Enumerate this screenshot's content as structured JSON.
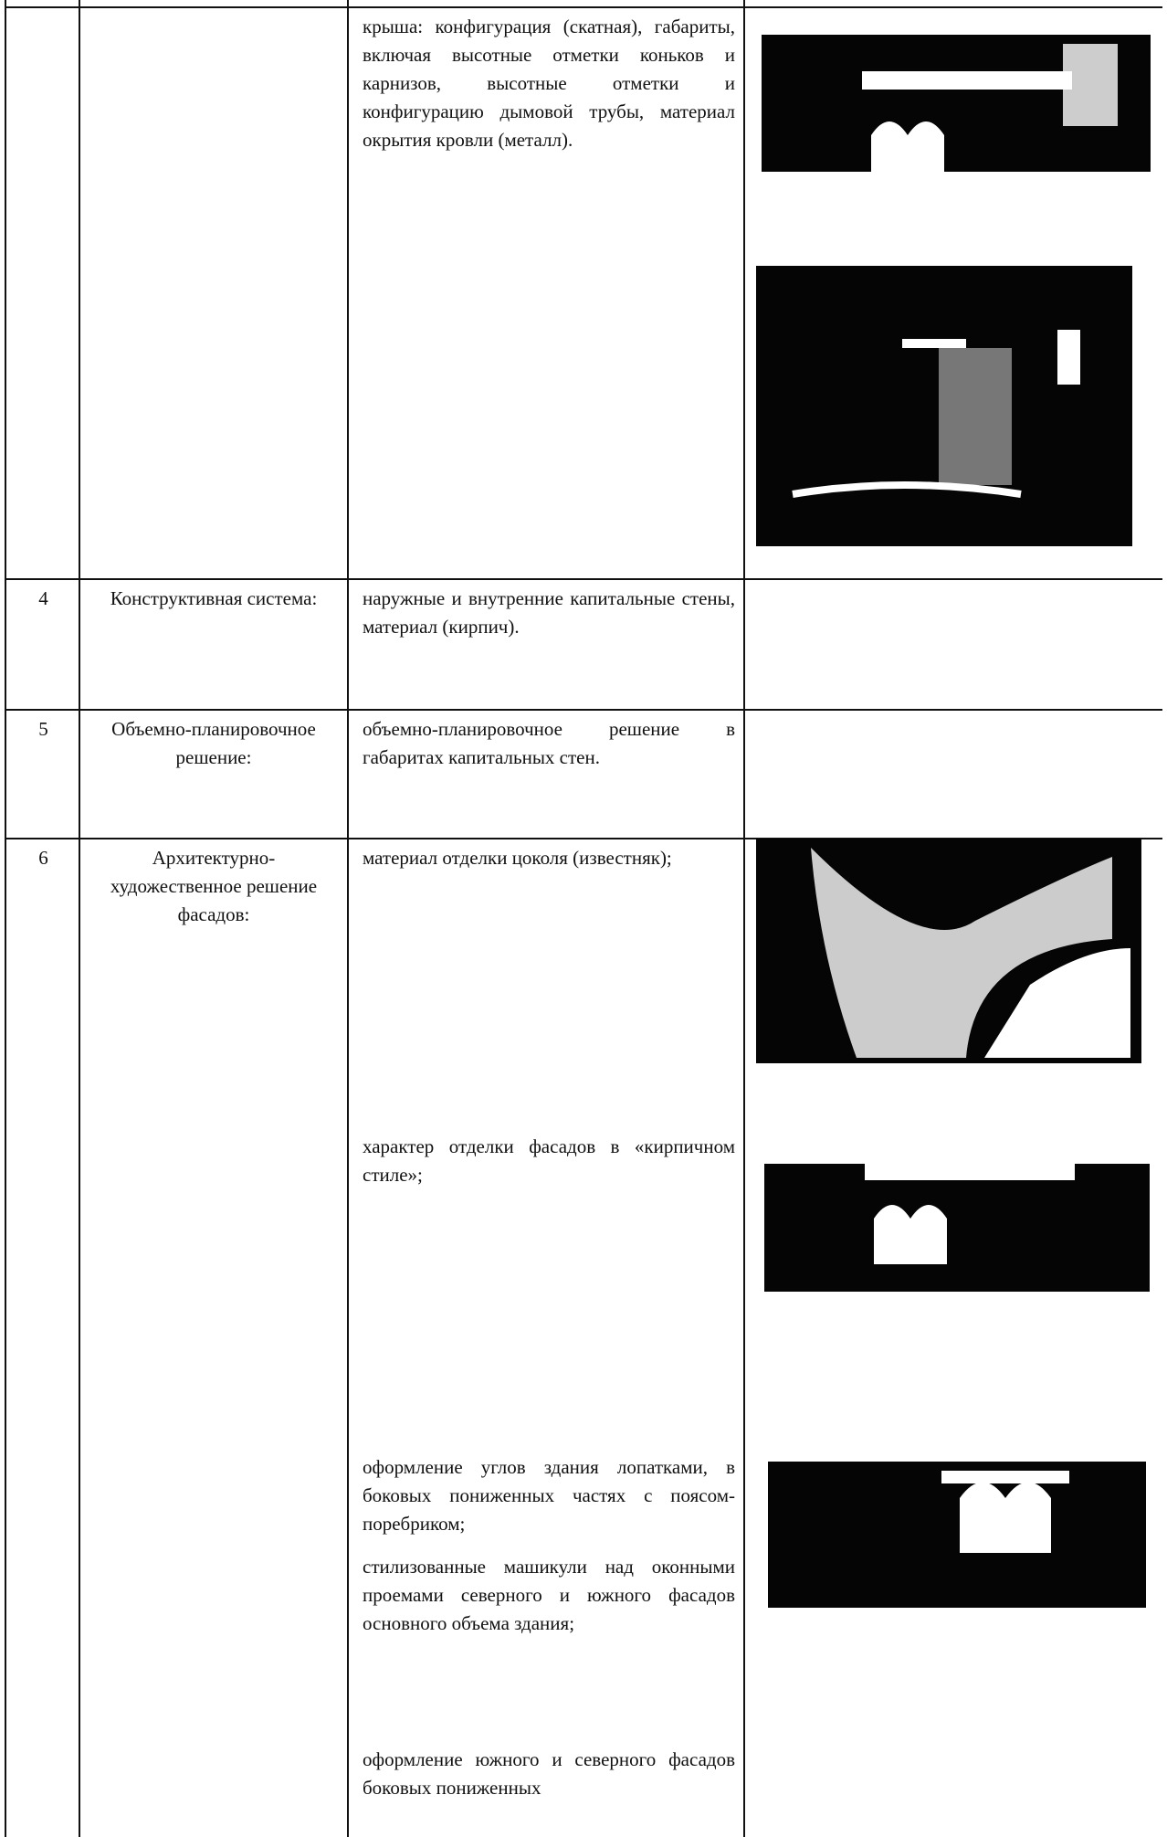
{
  "table": {
    "rows": [
      {
        "description": [
          "крыша: конфигурация (скатная), габариты, включая высотные отметки коньков и карнизов, высотные отметки и конфигурацию дымовой трубы, материал окрытия кровли (металл)."
        ]
      },
      {
        "number": "4",
        "name": "Конструктивная система:",
        "description": [
          "наружные и внутренние капитальные стены, материал (кирпич)."
        ]
      },
      {
        "number": "5",
        "name": "Объемно-планировочное решение:",
        "description": [
          "объемно-планировочное решение в габаритах капитальных стен."
        ]
      },
      {
        "number": "6",
        "name": "Архитектурно-художественное решение фасадов:",
        "description": [
          "материал отделки цоколя (известняк);",
          "характер отделки фасадов в «кирпичном стиле»;",
          "оформление углов здания лопатками, в боковых пониженных частях с поясом-поребриком;",
          "стилизованные машикули над оконными проемами северного и южного фасадов основного объема здания;",
          "оформление южного и северного фасадов боковых пониженных"
        ]
      }
    ]
  }
}
